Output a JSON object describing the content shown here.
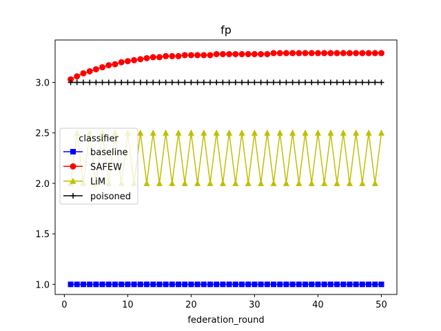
{
  "chart_data": {
    "type": "line",
    "title": "fp",
    "xlabel": "federation_round",
    "ylabel": "",
    "xlim": [
      -1.45,
      52.45
    ],
    "ylim": [
      0.9,
      3.42
    ],
    "xticks": [
      0,
      10,
      20,
      30,
      40,
      50
    ],
    "yticks": [
      1.0,
      1.5,
      2.0,
      2.5,
      3.0
    ],
    "ytick_labels": [
      "1.0",
      "1.5",
      "2.0",
      "2.5",
      "3.0"
    ],
    "xtick_labels": [
      "0",
      "10",
      "20",
      "30",
      "40",
      "50"
    ],
    "x": [
      1,
      2,
      3,
      4,
      5,
      6,
      7,
      8,
      9,
      10,
      11,
      12,
      13,
      14,
      15,
      16,
      17,
      18,
      19,
      20,
      21,
      22,
      23,
      24,
      25,
      26,
      27,
      28,
      29,
      30,
      31,
      32,
      33,
      34,
      35,
      36,
      37,
      38,
      39,
      40,
      41,
      42,
      43,
      44,
      45,
      46,
      47,
      48,
      49,
      50
    ],
    "legend": {
      "title": "classifier",
      "location": "center-left"
    },
    "series": [
      {
        "name": "baseline",
        "color": "#0000ff",
        "marker": "square",
        "values": [
          1.0,
          1.0,
          1.0,
          1.0,
          1.0,
          1.0,
          1.0,
          1.0,
          1.0,
          1.0,
          1.0,
          1.0,
          1.0,
          1.0,
          1.0,
          1.0,
          1.0,
          1.0,
          1.0,
          1.0,
          1.0,
          1.0,
          1.0,
          1.0,
          1.0,
          1.0,
          1.0,
          1.0,
          1.0,
          1.0,
          1.0,
          1.0,
          1.0,
          1.0,
          1.0,
          1.0,
          1.0,
          1.0,
          1.0,
          1.0,
          1.0,
          1.0,
          1.0,
          1.0,
          1.0,
          1.0,
          1.0,
          1.0,
          1.0,
          1.0
        ]
      },
      {
        "name": "SAFEW",
        "color": "#ff0000",
        "marker": "circle",
        "values": [
          3.03,
          3.06,
          3.09,
          3.11,
          3.13,
          3.15,
          3.17,
          3.18,
          3.2,
          3.21,
          3.22,
          3.23,
          3.24,
          3.25,
          3.25,
          3.26,
          3.26,
          3.26,
          3.27,
          3.27,
          3.27,
          3.27,
          3.27,
          3.28,
          3.28,
          3.28,
          3.28,
          3.28,
          3.28,
          3.28,
          3.28,
          3.28,
          3.29,
          3.29,
          3.29,
          3.29,
          3.29,
          3.29,
          3.29,
          3.29,
          3.29,
          3.29,
          3.29,
          3.29,
          3.29,
          3.29,
          3.29,
          3.29,
          3.29,
          3.29
        ]
      },
      {
        "name": "LiM",
        "color": "#bfbf00",
        "marker": "triangle",
        "values": [
          2.0,
          2.5,
          2.0,
          2.5,
          2.0,
          2.5,
          2.0,
          2.5,
          2.0,
          2.5,
          2.0,
          2.5,
          2.0,
          2.5,
          2.0,
          2.5,
          2.0,
          2.5,
          2.0,
          2.5,
          2.0,
          2.5,
          2.0,
          2.5,
          2.0,
          2.5,
          2.0,
          2.5,
          2.0,
          2.5,
          2.0,
          2.5,
          2.0,
          2.5,
          2.0,
          2.5,
          2.0,
          2.5,
          2.0,
          2.5,
          2.0,
          2.5,
          2.0,
          2.5,
          2.0,
          2.5,
          2.0,
          2.5,
          2.0,
          2.5
        ]
      },
      {
        "name": "poisoned",
        "color": "#000000",
        "marker": "plus",
        "values": [
          3.0,
          3.0,
          3.0,
          3.0,
          3.0,
          3.0,
          3.0,
          3.0,
          3.0,
          3.0,
          3.0,
          3.0,
          3.0,
          3.0,
          3.0,
          3.0,
          3.0,
          3.0,
          3.0,
          3.0,
          3.0,
          3.0,
          3.0,
          3.0,
          3.0,
          3.0,
          3.0,
          3.0,
          3.0,
          3.0,
          3.0,
          3.0,
          3.0,
          3.0,
          3.0,
          3.0,
          3.0,
          3.0,
          3.0,
          3.0,
          3.0,
          3.0,
          3.0,
          3.0,
          3.0,
          3.0,
          3.0,
          3.0,
          3.0,
          3.0
        ]
      }
    ]
  }
}
